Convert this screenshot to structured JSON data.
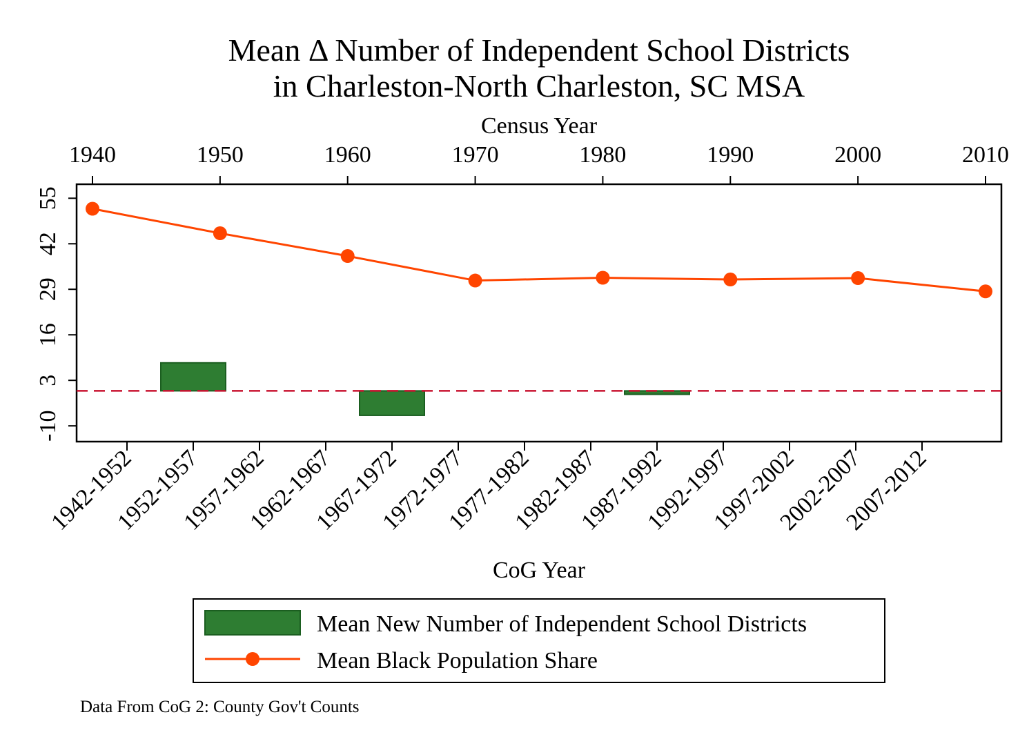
{
  "chart_data": {
    "type": "bar+line",
    "title_line1": "Mean Δ Number of Independent School Districts",
    "title_line2": "in Charleston-North Charleston, SC MSA",
    "top_axis": {
      "label": "Census Year",
      "ticks": [
        "1940",
        "1950",
        "1960",
        "1970",
        "1980",
        "1990",
        "2000",
        "2010"
      ],
      "range": [
        1940,
        2010
      ]
    },
    "bottom_axis": {
      "label": "CoG Year",
      "ticks": [
        "1942-1952",
        "1952-1957",
        "1957-1962",
        "1962-1967",
        "1967-1972",
        "1972-1977",
        "1977-1982",
        "1982-1987",
        "1987-1992",
        "1992-1997",
        "1997-2002",
        "2002-2007",
        "2007-2012"
      ]
    },
    "y_axis": {
      "ticks": [
        "55",
        "42",
        "29",
        "16",
        "3",
        "-10"
      ],
      "range": [
        -14.5,
        59
      ]
    },
    "reference_line": {
      "y": 0,
      "color": "#c8102e",
      "style": "dashed"
    },
    "series": [
      {
        "name": "Mean New Number of Independent School Districts",
        "kind": "bar",
        "color": "#2e7d32",
        "bars": [
          {
            "category": "1952-1957",
            "value": 8
          },
          {
            "category": "1967-1972",
            "value": -7
          },
          {
            "category": "1987-1992",
            "value": -1
          }
        ]
      },
      {
        "name": "Mean Black Population Share",
        "kind": "line",
        "color": "#ff4500",
        "points": [
          {
            "x": 1940,
            "y": 52
          },
          {
            "x": 1950,
            "y": 45
          },
          {
            "x": 1960,
            "y": 38.5
          },
          {
            "x": 1970,
            "y": 31.5
          },
          {
            "x": 1980,
            "y": 32.3
          },
          {
            "x": 1990,
            "y": 31.8
          },
          {
            "x": 2000,
            "y": 32.2
          },
          {
            "x": 2010,
            "y": 28.4
          }
        ]
      }
    ],
    "legend_position": "bottom",
    "note": "Data From CoG 2: County Gov't Counts"
  }
}
